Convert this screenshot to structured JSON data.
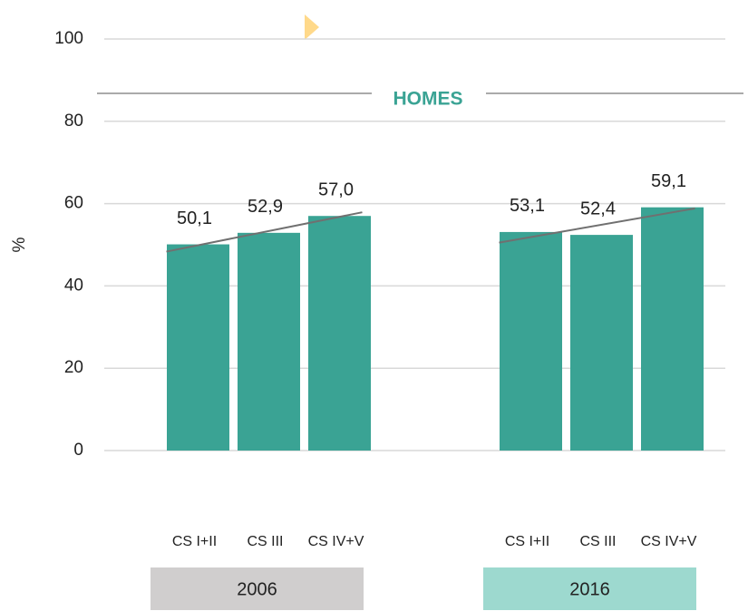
{
  "chart_data": {
    "type": "bar",
    "title": "HOMES",
    "y_label": "%",
    "bar_color": "#3aa394",
    "trendline": true,
    "trendline_color": "#707070",
    "ylim": [
      0,
      100
    ],
    "yticks": [
      0,
      20,
      40,
      60,
      80,
      100
    ],
    "grid": true,
    "groups": [
      {
        "name": "2006",
        "color": "#d0cece",
        "categories": [
          "CS I+II",
          "CS III",
          "CS IV+V"
        ],
        "values": [
          50.1,
          52.9,
          57.0
        ],
        "value_labels": [
          "50,1",
          "52,9",
          "57,0"
        ]
      },
      {
        "name": "2016",
        "color": "#9dd9cf",
        "categories": [
          "CS I+II",
          "CS III",
          "CS IV+V"
        ],
        "values": [
          53.1,
          52.4,
          59.1
        ],
        "value_labels": [
          "53,1",
          "52,4",
          "59,1"
        ]
      }
    ]
  }
}
